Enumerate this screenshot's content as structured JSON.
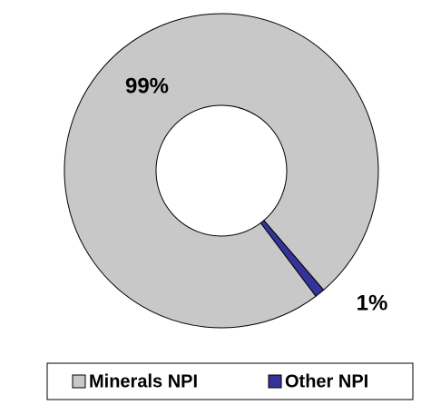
{
  "chart_data": {
    "type": "donut",
    "categories": [
      "Minerals NPI",
      "Other NPI"
    ],
    "values": [
      99,
      1
    ],
    "value_labels": [
      "99%",
      "1%"
    ],
    "colors": [
      "#c8c8c8",
      "#333399"
    ],
    "start_angle": 143,
    "legend": "bottom"
  }
}
